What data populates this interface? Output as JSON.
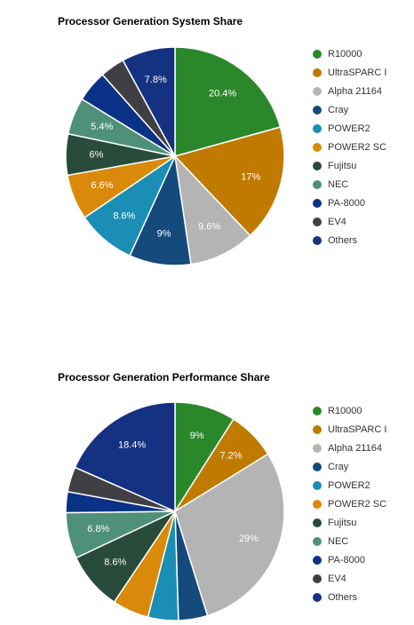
{
  "chart_data": [
    {
      "type": "pie",
      "title": "Processor Generation System Share",
      "legend_position": "right",
      "categories": [
        "R10000",
        "UltraSPARC I",
        "Alpha 21164",
        "Cray",
        "POWER2",
        "POWER2 SC",
        "Fujitsu",
        "NEC",
        "PA-8000",
        "EV4",
        "Others"
      ],
      "colors": [
        "#2a882a",
        "#c07a00",
        "#b4b4b4",
        "#154a7c",
        "#1a8eb4",
        "#d98a0a",
        "#284b3b",
        "#4e9078",
        "#0a3286",
        "#404044",
        "#153282"
      ],
      "values": [
        20.4,
        17,
        9.6,
        9,
        8.6,
        6.6,
        6,
        5.4,
        4.6,
        3.6,
        7.8
      ],
      "labels": [
        "20.4%",
        "17%",
        "9.6%",
        "9%",
        "8.6%",
        "6.6%",
        "6%",
        "5.4%",
        "",
        "",
        "7.8%"
      ]
    },
    {
      "type": "pie",
      "title": "Processor Generation Performance Share",
      "legend_position": "right",
      "categories": [
        "R10000",
        "UltraSPARC I",
        "Alpha 21164",
        "Cray",
        "POWER2",
        "POWER2 SC",
        "Fujitsu",
        "NEC",
        "PA-8000",
        "EV4",
        "Others"
      ],
      "colors": [
        "#2a882a",
        "#c07a00",
        "#b4b4b4",
        "#154a7c",
        "#1a8eb4",
        "#d98a0a",
        "#284b3b",
        "#4e9078",
        "#0a3286",
        "#404044",
        "#153282"
      ],
      "values": [
        9,
        7.2,
        29,
        4.3,
        4.5,
        5.4,
        8.6,
        6.8,
        3.1,
        3.7,
        18.4
      ],
      "labels": [
        "9%",
        "7.2%",
        "29%",
        "",
        "",
        "",
        "8.6%",
        "6.8%",
        "",
        "",
        "18.4%"
      ]
    }
  ]
}
